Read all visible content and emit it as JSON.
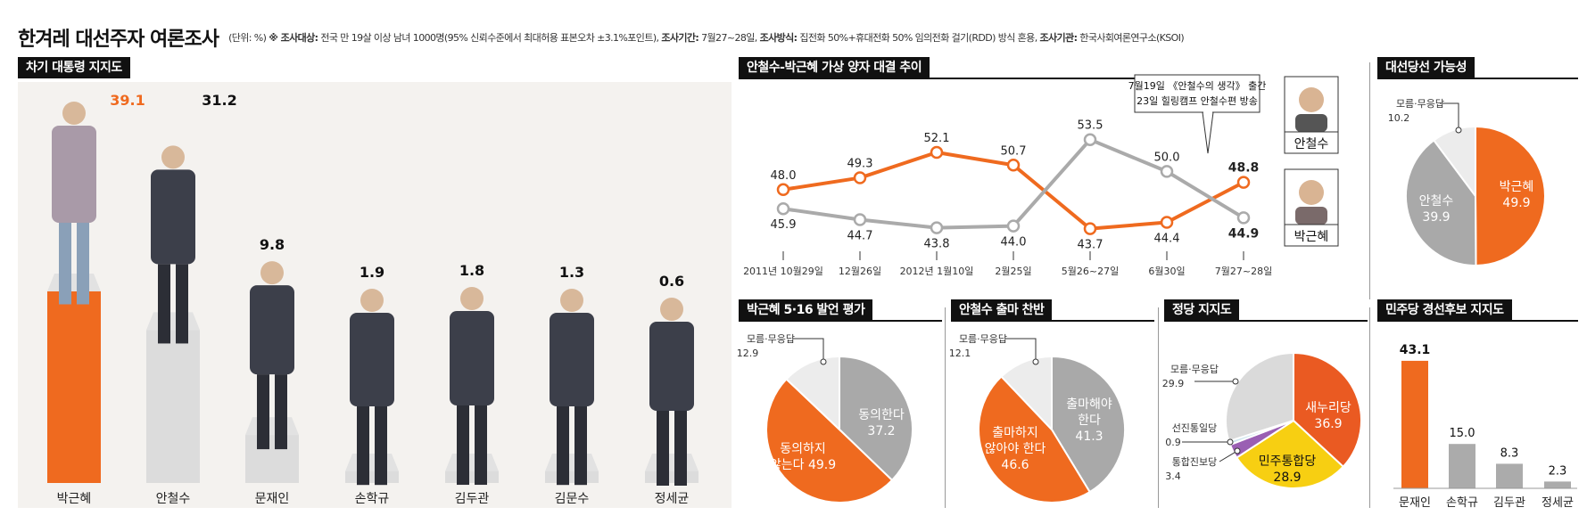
{
  "header": {
    "title": "한겨레 대선주자 여론조사",
    "unit": "(단위: %)",
    "target_label": "※ 조사대상:",
    "target": "전국 만 19살 이상 남녀 1000명(95% 신뢰수준에서 최대허용 표본오차 ±3.1%포인트),",
    "period_label": "조사기간:",
    "period": "7월27~28일,",
    "method_label": "조사방식:",
    "method": "집전화 50%+휴대전화 50% 임의전화 걸기(RDD) 방식 혼용,",
    "org_label": "조사기관:",
    "org": "한국사회여론연구소(KSOI)"
  },
  "colors": {
    "orange": "#ef6a1f",
    "gray": "#aaaaaa",
    "light": "#ececec",
    "dark": "#111111",
    "yellow": "#f7cf12",
    "purple": "#9a5fb3",
    "lightblue": "#cde5ee",
    "red": "#ea5a22"
  },
  "chart_data": [
    {
      "id": "support",
      "type": "bar",
      "title": "차기 대통령 지지도",
      "categories": [
        "박근혜",
        "안철수",
        "문재인",
        "손학규",
        "김두관",
        "김문수",
        "정세균"
      ],
      "values": [
        39.1,
        31.2,
        9.8,
        1.9,
        1.8,
        1.3,
        0.6
      ],
      "value_labels": [
        "39.1",
        "31.2",
        "9.8",
        "1.9",
        "1.8",
        "1.3",
        "0.6"
      ],
      "highlight": [
        true,
        false,
        false,
        false,
        false,
        false,
        false
      ]
    },
    {
      "id": "trend",
      "type": "line",
      "title": "안철수-박근혜 가상 양자 대결 추이",
      "x": [
        "2011년 10월29일",
        "12월26일",
        "2012년 1월10일",
        "2월25일",
        "5월26~27일",
        "6월30일",
        "7월27~28일"
      ],
      "series": [
        {
          "name": "안철수",
          "values": [
            48.0,
            49.3,
            52.1,
            50.7,
            43.7,
            44.4,
            48.8
          ],
          "labels": [
            "48.0",
            "49.3",
            "52.1",
            "50.7",
            "43.7",
            "44.4",
            "48.8"
          ],
          "color": "#ef6a1f"
        },
        {
          "name": "박근혜",
          "values": [
            45.9,
            44.7,
            43.8,
            44.0,
            53.5,
            50.0,
            44.9
          ],
          "labels": [
            "45.9",
            "44.7",
            "43.8",
            "44.0",
            "53.5",
            "50.0",
            "44.9"
          ],
          "color": "#aaaaaa"
        }
      ],
      "annotation": [
        "7월19일 《안철수의 생각》 출간",
        "23일 힐링캠프 안철수편 방송"
      ],
      "legend": [
        "안철수",
        "박근혜"
      ]
    },
    {
      "id": "chance",
      "type": "pie",
      "title": "대선당선 가능성",
      "labels": [
        "박근혜",
        "안철수",
        "모름·무응답"
      ],
      "values": [
        49.9,
        39.9,
        10.2
      ],
      "value_labels": [
        "49.9",
        "39.9",
        "10.2"
      ]
    },
    {
      "id": "remark",
      "type": "pie",
      "title": "박근혜 5·16 발언 평가",
      "labels": [
        "동의한다",
        "동의하지 않는다",
        "모름·무응답"
      ],
      "values": [
        37.2,
        49.9,
        12.9
      ],
      "value_labels": [
        "37.2",
        "49.9",
        "12.9"
      ]
    },
    {
      "id": "run",
      "type": "pie",
      "title": "안철수 출마 찬반",
      "labels": [
        "출마해야 한다",
        "출마하지 않아야 한다",
        "모름·무응답"
      ],
      "values": [
        41.3,
        46.6,
        12.1
      ],
      "value_labels": [
        "41.3",
        "46.6",
        "12.1"
      ]
    },
    {
      "id": "party",
      "type": "pie",
      "title": "정당 지지도",
      "labels": [
        "새누리당",
        "민주통합당",
        "통합진보당",
        "선진통일당",
        "모름·무응답"
      ],
      "values": [
        36.9,
        28.9,
        3.4,
        0.9,
        29.9
      ],
      "value_labels": [
        "36.9",
        "28.9",
        "3.4",
        "0.9",
        "29.9"
      ]
    },
    {
      "id": "minjoo",
      "type": "bar",
      "title": "민주당 경선후보 지지도",
      "categories": [
        "문재인",
        "손학규",
        "김두관",
        "정세균"
      ],
      "values": [
        43.1,
        15.0,
        8.3,
        2.3
      ],
      "value_labels": [
        "43.1",
        "15.0",
        "8.3",
        "2.3"
      ],
      "highlight": [
        true,
        false,
        false,
        false
      ]
    }
  ]
}
